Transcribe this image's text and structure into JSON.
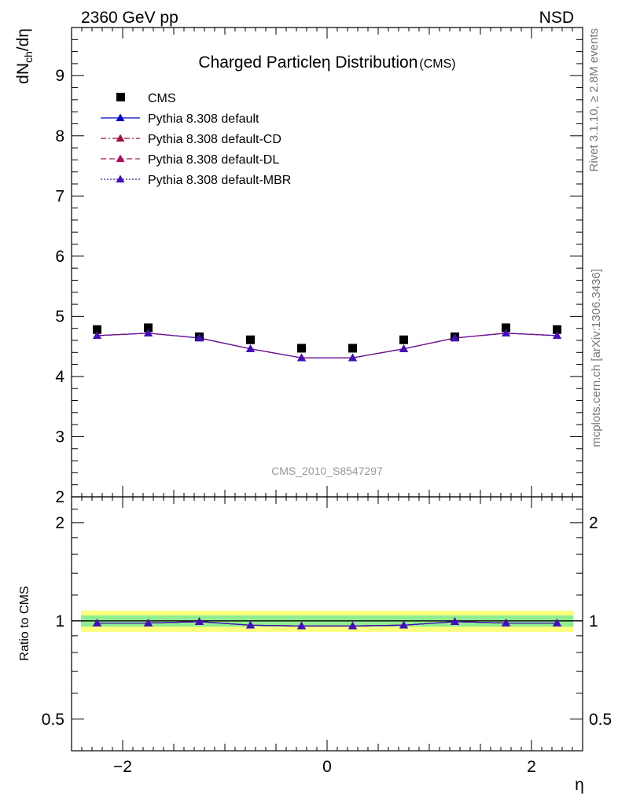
{
  "header": {
    "left_label": "2360 GeV pp",
    "right_label": "NSD"
  },
  "side_text": {
    "rivet": "Rivet 3.1.10, ≥ 2.8M events",
    "mcplots": "mcplots.cern.ch [arXiv:1306.3436]"
  },
  "chart_data": [
    {
      "type": "scatter",
      "panel": "main",
      "title": "Charged Particleη Distribution",
      "title_suffix": "(CMS)",
      "ylabel": "dN",
      "ylabel_sub": "ch",
      "ylabel_tail": "/dη",
      "xlabel": "η",
      "watermark": "CMS_2010_S8547297",
      "xlim": [
        -2.5,
        2.5
      ],
      "ylim": [
        2,
        9.8
      ],
      "yticks_major": [
        2,
        3,
        4,
        5,
        6,
        7,
        8,
        9
      ],
      "ytick_labels": [
        "2",
        "3",
        "4",
        "5",
        "6",
        "7",
        "8",
        "9"
      ],
      "xticks_major": [
        -2,
        0,
        2
      ],
      "xtick_labels": [
        "−2",
        "0",
        "2"
      ],
      "x": [
        -2.25,
        -1.75,
        -1.25,
        -0.75,
        -0.25,
        0.25,
        0.75,
        1.25,
        1.75,
        2.25
      ],
      "legend_position": "top-left",
      "series": [
        {
          "name": "CMS",
          "color": "#000000",
          "marker": "square",
          "values": [
            4.78,
            4.81,
            4.66,
            4.61,
            4.47,
            4.47,
            4.61,
            4.66,
            4.81,
            4.78
          ]
        },
        {
          "name": "Pythia 8.308 default",
          "color": "#0000cc",
          "marker": "triangle",
          "line": "solid",
          "values": [
            4.68,
            4.72,
            4.64,
            4.46,
            4.31,
            4.31,
            4.46,
            4.64,
            4.72,
            4.68
          ]
        },
        {
          "name": "Pythia 8.308 default-CD",
          "color": "#a01040",
          "marker": "triangle",
          "line": "dashdot",
          "values": [
            4.68,
            4.72,
            4.64,
            4.46,
            4.31,
            4.31,
            4.46,
            4.64,
            4.72,
            4.68
          ]
        },
        {
          "name": "Pythia 8.308 default-DL",
          "color": "#b01060",
          "marker": "triangle",
          "line": "dashed",
          "values": [
            4.68,
            4.72,
            4.64,
            4.46,
            4.31,
            4.31,
            4.46,
            4.64,
            4.72,
            4.68
          ]
        },
        {
          "name": "Pythia 8.308 default-MBR",
          "color": "#4010c0",
          "marker": "triangle",
          "line": "dotted",
          "values": [
            4.68,
            4.72,
            4.64,
            4.46,
            4.31,
            4.31,
            4.46,
            4.64,
            4.72,
            4.68
          ]
        }
      ]
    },
    {
      "type": "line",
      "panel": "ratio",
      "ylabel": "Ratio to CMS",
      "xlabel": "η",
      "xlim": [
        -2.5,
        2.5
      ],
      "ylim": [
        0.4,
        2.4
      ],
      "log_y": true,
      "yticks_major": [
        0.5,
        1,
        2
      ],
      "ytick_labels": [
        "0.5",
        "1",
        "2"
      ],
      "xticks_major": [
        -2,
        0,
        2
      ],
      "xtick_labels": [
        "−2",
        "0",
        "2"
      ],
      "x": [
        -2.25,
        -1.75,
        -1.25,
        -0.75,
        -0.25,
        0.25,
        0.75,
        1.25,
        1.75,
        2.25
      ],
      "band_inner": {
        "color": "#90ee90",
        "half_width": 0.04
      },
      "band_outer": {
        "color": "#ffff80",
        "half_width": 0.075
      },
      "series": [
        {
          "name": "Pythia 8.308 default",
          "color": "#0000cc",
          "values": [
            0.985,
            0.985,
            0.995,
            0.97,
            0.965,
            0.965,
            0.97,
            0.995,
            0.985,
            0.985
          ]
        },
        {
          "name": "Pythia 8.308 default-CD",
          "color": "#a01040",
          "values": [
            0.985,
            0.985,
            0.995,
            0.97,
            0.965,
            0.965,
            0.97,
            0.995,
            0.985,
            0.985
          ]
        },
        {
          "name": "Pythia 8.308 default-DL",
          "color": "#b01060",
          "values": [
            0.985,
            0.985,
            0.995,
            0.97,
            0.965,
            0.965,
            0.97,
            0.995,
            0.985,
            0.985
          ]
        },
        {
          "name": "Pythia 8.308 default-MBR",
          "color": "#4010c0",
          "values": [
            0.985,
            0.985,
            0.995,
            0.97,
            0.965,
            0.965,
            0.97,
            0.995,
            0.985,
            0.985
          ]
        }
      ]
    }
  ]
}
